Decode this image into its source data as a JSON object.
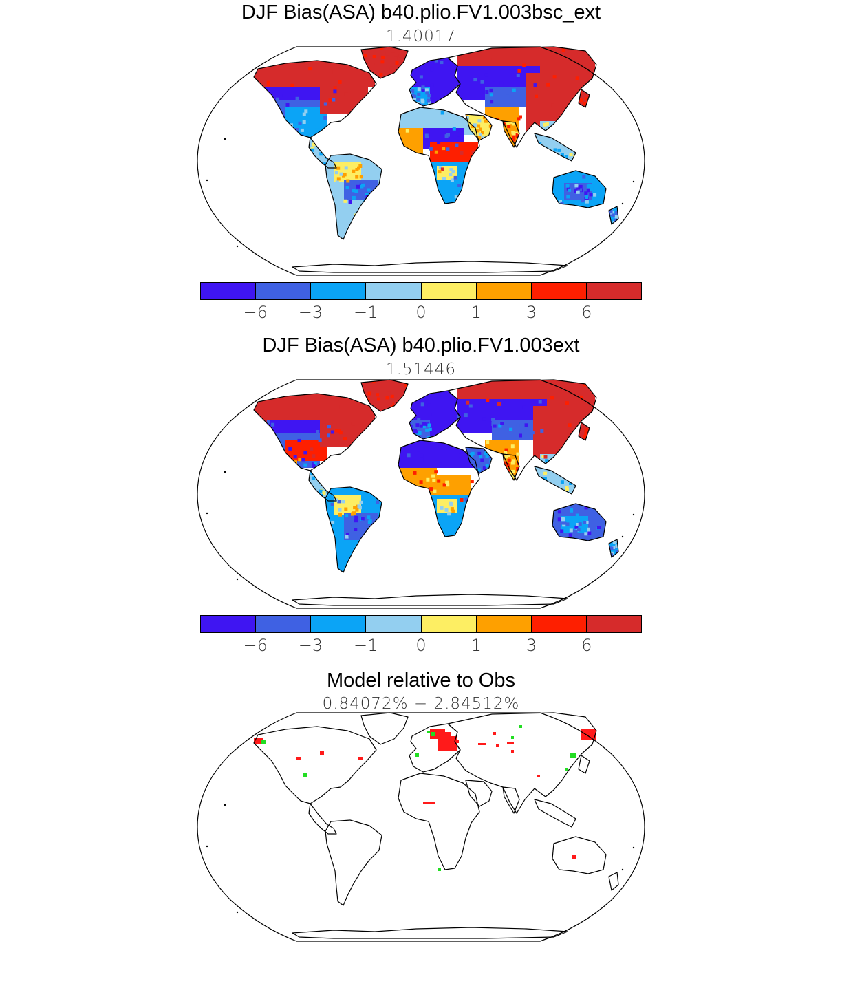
{
  "panels": [
    {
      "title": "DJF Bias(ASA) b40.plio.FV1.003bsc_ext",
      "subtitle": "1.40017"
    },
    {
      "title": "DJF Bias(ASA) b40.plio.FV1.003ext",
      "subtitle": "1.51446"
    },
    {
      "title": "Model relative to Obs",
      "subtitle": "0.84072% − 2.84512%"
    }
  ],
  "colorbar": {
    "colors": [
      "#3f15f2",
      "#3f61e3",
      "#0ba4f6",
      "#93cff0",
      "#fdee63",
      "#fea000",
      "#fe1f00",
      "#d62b2b"
    ],
    "tick_labels": [
      "−6",
      "−3",
      "−1",
      "0",
      "1",
      "3",
      "6"
    ]
  },
  "map": {
    "projection": "Robinson",
    "region": "global",
    "land_fill": "#ffffff",
    "coastline_color": "#000000",
    "relative_colors": {
      "worse": "#ff1a1a",
      "better": "#22dd22"
    }
  }
}
